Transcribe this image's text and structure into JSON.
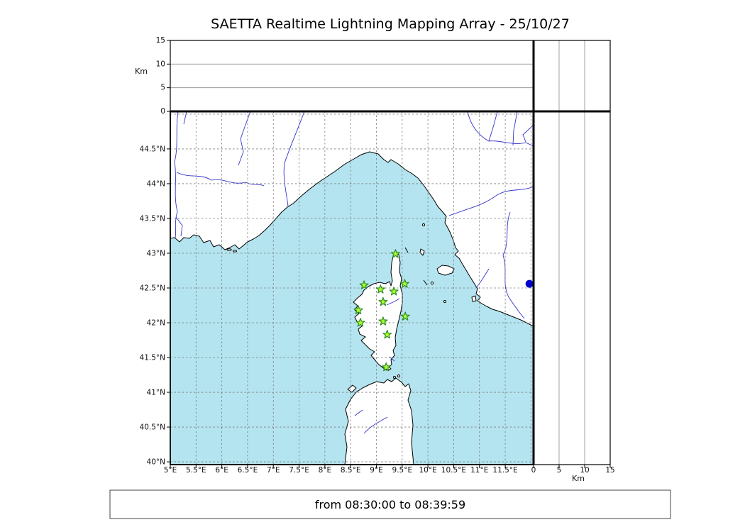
{
  "title": "SAETTA Realtime Lightning Mapping Array - 25/10/27",
  "footer": {
    "text": "from 08:30:00 to 08:39:59"
  },
  "chart_data": {
    "type": "scatter",
    "subtype": "geographic-lightning-map",
    "title": "SAETTA Realtime Lightning Mapping Array - 25/10/27",
    "time_window": {
      "from": "08:30:00",
      "to": "08:39:59"
    },
    "map_panel": {
      "lon_axis": {
        "ticks": [
          5,
          5.5,
          6,
          6.5,
          7,
          7.5,
          8,
          8.5,
          9,
          9.5,
          10,
          10.5,
          11,
          11.5
        ],
        "tick_labels": [
          "5°E",
          "5.5°E",
          "6°E",
          "6.5°E",
          "7°E",
          "7.5°E",
          "8°E",
          "8.5°E",
          "9°E",
          "9.5°E",
          "10°E",
          "10.5°E",
          "11°E",
          "11.5°E"
        ],
        "range": [
          5.0,
          12.05
        ]
      },
      "lat_axis": {
        "ticks": [
          44.5,
          44,
          43.5,
          43,
          42.5,
          42,
          41.5,
          41,
          40.5,
          40
        ],
        "tick_labels": [
          "44.5°N",
          "44°N",
          "43.5°N",
          "43°N",
          "42.5°N",
          "42°N",
          "41.5°N",
          "41°N",
          "40.5°N",
          "40°N"
        ],
        "range": [
          39.96,
          45.04
        ]
      },
      "grid": true,
      "sea_color": "#b4e4ef",
      "land_color": "#ffffff",
      "coast_color": "#000000",
      "river_color": "#3333cc",
      "grid_color": "#7a7a7a"
    },
    "altitude_axes": {
      "label": "Km",
      "ticks": [
        0,
        5,
        10,
        15
      ],
      "tick_labels": [
        "0",
        "5",
        "10",
        "15"
      ],
      "gridlines": [
        5,
        10
      ],
      "range": [
        0,
        15
      ]
    },
    "stations": {
      "marker": "star",
      "fill_color": "#adff2f",
      "edge_color": "#2e8b22",
      "points": [
        {
          "lon": 9.37,
          "lat": 42.99
        },
        {
          "lon": 8.76,
          "lat": 42.54
        },
        {
          "lon": 9.08,
          "lat": 42.48
        },
        {
          "lon": 9.34,
          "lat": 42.45
        },
        {
          "lon": 9.55,
          "lat": 42.56
        },
        {
          "lon": 9.13,
          "lat": 42.3
        },
        {
          "lon": 8.65,
          "lat": 42.18
        },
        {
          "lon": 8.69,
          "lat": 42.0
        },
        {
          "lon": 9.56,
          "lat": 42.09
        },
        {
          "lon": 9.13,
          "lat": 42.02
        },
        {
          "lon": 9.21,
          "lat": 41.83
        },
        {
          "lon": 9.19,
          "lat": 41.36
        }
      ]
    },
    "events": {
      "marker": "circle",
      "color": "#0000cd",
      "points": [
        {
          "lon": 11.97,
          "lat": 42.56
        }
      ]
    }
  }
}
